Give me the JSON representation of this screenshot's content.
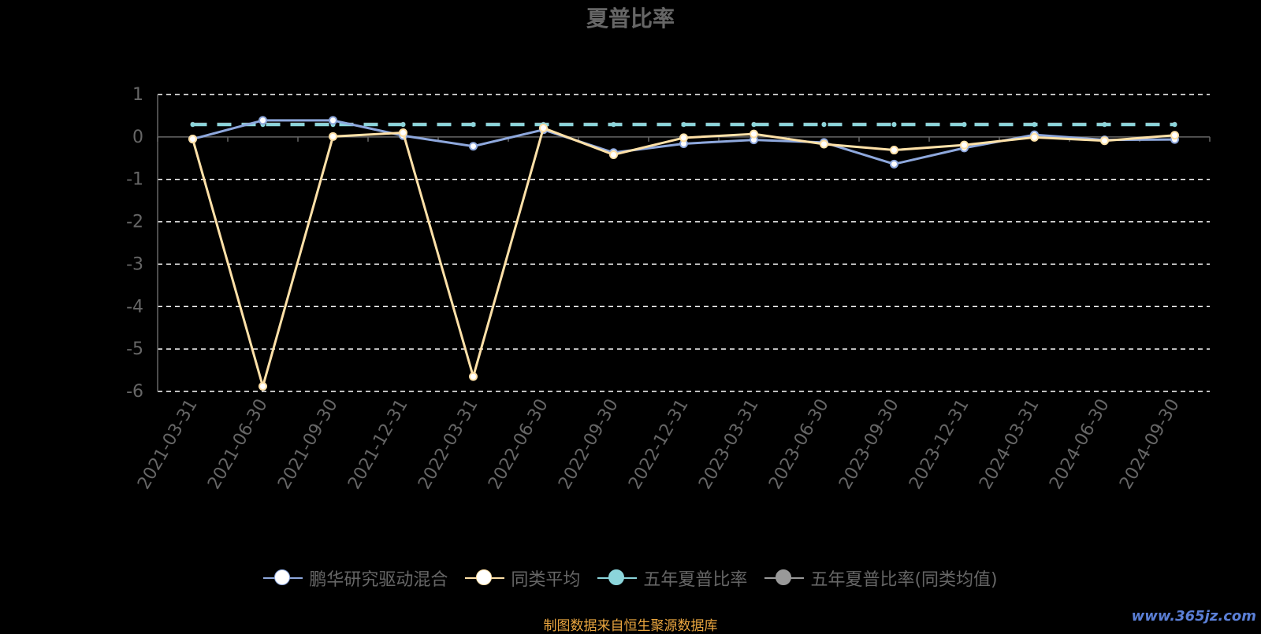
{
  "chart_data": {
    "type": "line",
    "title": "夏普比率",
    "categories": [
      "2021-03-31",
      "2021-06-30",
      "2021-09-30",
      "2021-12-31",
      "2022-03-31",
      "2022-06-30",
      "2022-09-30",
      "2022-12-31",
      "2023-03-31",
      "2023-06-30",
      "2023-09-30",
      "2023-12-31",
      "2024-03-31",
      "2024-06-30",
      "2024-09-30"
    ],
    "ylim": [
      -6,
      1
    ],
    "yticks": [
      1,
      0,
      -1,
      -2,
      -3,
      -4,
      -5,
      -6
    ],
    "grid": true,
    "legend_position": "bottom",
    "series": [
      {
        "name": "鹏华研究驱动混合",
        "color": "#8EA8DD",
        "values": [
          -0.05,
          0.39,
          0.39,
          0.03,
          -0.22,
          0.17,
          -0.37,
          -0.16,
          -0.07,
          -0.13,
          -0.64,
          -0.26,
          0.05,
          -0.07,
          -0.06
        ]
      },
      {
        "name": "同类平均",
        "color": "#FFE1A8",
        "values": [
          -0.05,
          -5.88,
          0.01,
          0.1,
          -5.65,
          0.21,
          -0.42,
          -0.02,
          0.07,
          -0.17,
          -0.31,
          -0.19,
          -0.01,
          -0.09,
          0.04
        ]
      },
      {
        "name": "五年夏普比率",
        "color": "#8BD5DB",
        "values": [
          0.29,
          0.29,
          0.29,
          0.29,
          0.29,
          0.29,
          0.29,
          0.29,
          0.29,
          0.29,
          0.29,
          0.29,
          0.29,
          0.29,
          0.29
        ]
      },
      {
        "name": "五年夏普比率(同类均值)",
        "color": "#999999",
        "values": [
          0.3,
          0.3,
          0.3,
          0.3,
          0.3,
          0.3,
          0.3,
          0.3,
          0.3,
          0.3,
          0.3,
          0.3,
          0.3,
          0.3,
          0.3
        ]
      }
    ]
  },
  "footer": {
    "source": "制图数据来自恒生聚源数据库",
    "watermark": "www.365jz.com"
  }
}
